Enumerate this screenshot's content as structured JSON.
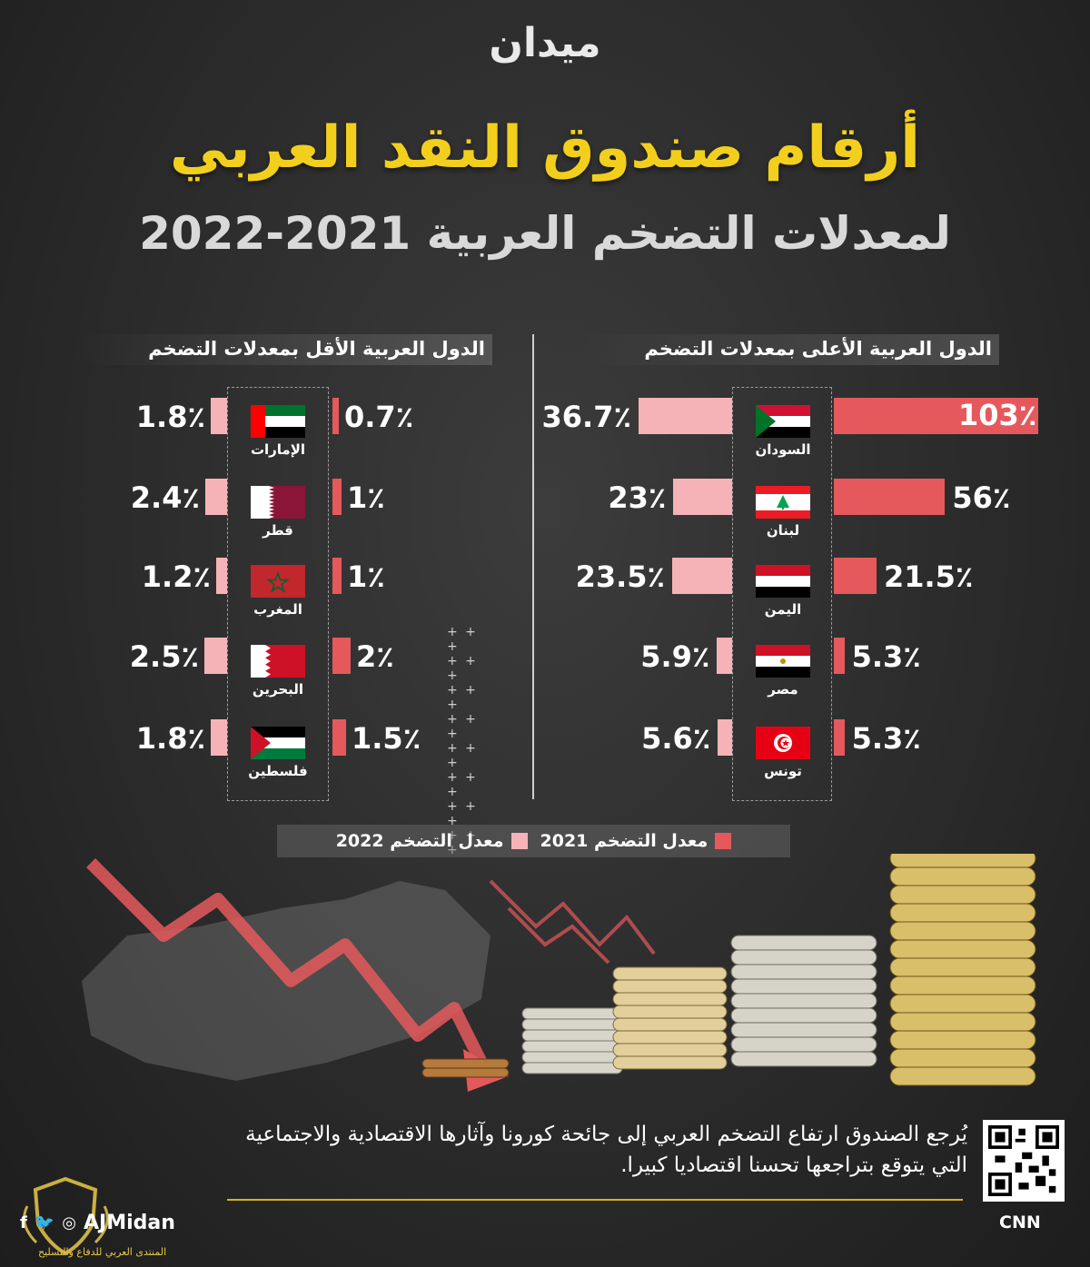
{
  "header": {
    "logo": "ميدان",
    "title": "أرقام صندوق النقد العربي",
    "subtitle": "لمعدلات التضخم العربية 2021-2022"
  },
  "panels": {
    "highest_heading": "الدول العربية الأعلى بمعدلات التضخم",
    "lowest_heading": "الدول العربية الأقل بمعدلات التضخم"
  },
  "legend": {
    "label_2021": "معدل التضخم 2021",
    "label_2022": "معدل التضخم 2022"
  },
  "colors": {
    "inflation_2021": "#e5595c",
    "inflation_2022": "#f5b3b8",
    "title": "#f2cf1c"
  },
  "chart_data": [
    {
      "type": "bar",
      "title": "الدول العربية الأعلى بمعدلات التضخم",
      "categories": [
        "السودان",
        "لبنان",
        "اليمن",
        "مصر",
        "تونس"
      ],
      "series": [
        {
          "name": "معدل التضخم 2021",
          "values": [
            103,
            56,
            21.5,
            5.3,
            5.3
          ],
          "labels": [
            "103٪",
            "56٪",
            "21.5٪",
            "5.3٪",
            "5.3٪"
          ]
        },
        {
          "name": "معدل التضخم 2022",
          "values": [
            36.7,
            23,
            23.5,
            5.9,
            5.6
          ],
          "labels": [
            "36.7٪",
            "23٪",
            "23.5٪",
            "5.9٪",
            "5.6٪"
          ]
        }
      ]
    },
    {
      "type": "bar",
      "title": "الدول العربية الأقل بمعدلات التضخم",
      "categories": [
        "الإمارات",
        "قطر",
        "المغرب",
        "البحرين",
        "فلسطين"
      ],
      "series": [
        {
          "name": "معدل التضخم 2021",
          "values": [
            0.7,
            1,
            1,
            2,
            1.5
          ],
          "labels": [
            "0.7٪",
            "1٪",
            "1٪",
            "2٪",
            "1.5٪"
          ]
        },
        {
          "name": "معدل التضخم 2022",
          "values": [
            1.8,
            2.4,
            1.2,
            2.5,
            1.8
          ],
          "labels": [
            "1.8٪",
            "2.4٪",
            "1.2٪",
            "2.5٪",
            "1.8٪"
          ]
        }
      ]
    }
  ],
  "flags": {
    "high": [
      "sudan-flag-icon",
      "lebanon-flag-icon",
      "yemen-flag-icon",
      "egypt-flag-icon",
      "tunisia-flag-icon"
    ],
    "low": [
      "uae-flag-icon",
      "qatar-flag-icon",
      "morocco-flag-icon",
      "bahrain-flag-icon",
      "palestine-flag-icon"
    ]
  },
  "footer": {
    "note": "يُرجع الصندوق ارتفاع التضخم العربي إلى جائحة كورونا وآثارها الاقتصادية والاجتماعية التي يتوقع بتراجعها تحسنا اقتصاديا كبيرا.",
    "source": "CNN",
    "handle": "AJMidan",
    "watermark": "المنتدى العربي للدفاع والتسليح"
  }
}
